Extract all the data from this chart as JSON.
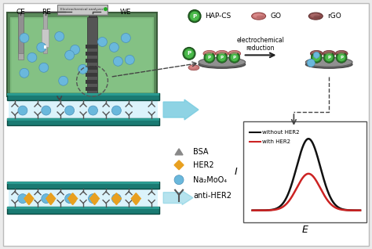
{
  "bg_color": "#ebebeb",
  "legend_top": {
    "hapc_label": "HAP-CS",
    "go_label": "GO",
    "rgo_label": "rGO"
  },
  "electrochemical_label": "electrochemical\nreduction",
  "curve_xlabel": "E",
  "curve_ylabel": "I",
  "curve_label1": "without HER2",
  "curve_label2": "with HER2",
  "curve_color1": "#111111",
  "curve_color2": "#cc2222",
  "electrode_labels": [
    "CE",
    "RE",
    "WE"
  ],
  "legend_bottom": {
    "bsa": "BSA",
    "her2": "HER2",
    "na2moo4": "Na₂MoO₄",
    "anti_her2": "anti-HER2"
  },
  "teal_color": "#1a7a72",
  "teal_light": "#2a9a90",
  "light_blue": "#6ab0d4",
  "orange_color": "#e8a020",
  "container_fill": "#7dba7d",
  "container_border": "#3a6a3a",
  "dashed_color": "#444444",
  "arrow_color": "#7acce0"
}
